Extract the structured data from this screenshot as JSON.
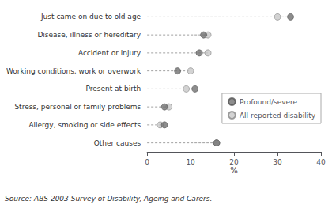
{
  "chart_data": {
    "type": "scatter",
    "orientation": "horizontal",
    "categories": [
      "Just came on due to old age",
      "Disease, illness or hereditary",
      "Accident or injury",
      "Working conditions, work or overwork",
      "Present at birth",
      "Stress, personal or family problems",
      "Allergy, smoking or side effects",
      "Other causes"
    ],
    "series": [
      {
        "name": "Profound/severe",
        "color": "#707070",
        "values": [
          33,
          13,
          12,
          7,
          11,
          4,
          4,
          16
        ]
      },
      {
        "name": "All reported disability",
        "color": "#c8c8c8",
        "values": [
          30,
          14,
          14,
          10,
          9,
          5,
          3,
          16
        ]
      }
    ],
    "xlabel": "%",
    "xlim": [
      0,
      40
    ],
    "xticks": [
      0,
      10,
      20,
      30,
      40
    ],
    "annotations": [
      "Source: ABS 2003 Survey of Disability, Ageing and Carers."
    ],
    "legend": "right"
  }
}
